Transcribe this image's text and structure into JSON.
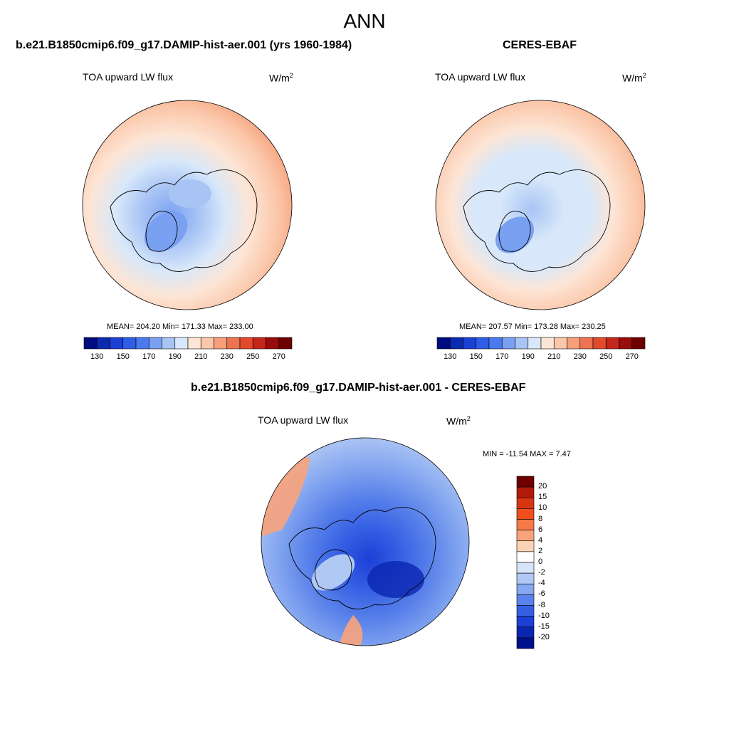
{
  "figure": {
    "title": "ANN",
    "panels": [
      {
        "case": "b.e21.B1850cmip6.f09_g17.DAMIP-hist-aer.001 (yrs 1960-1984)",
        "variable": "TOA upward LW flux",
        "units_base": "W/m",
        "units_exp": "2",
        "stats": "MEAN= 204.20  Min= 171.33  Max= 233.00"
      },
      {
        "case": "CERES-EBAF",
        "variable": "TOA upward LW flux",
        "units_base": "W/m",
        "units_exp": "2",
        "stats": "MEAN= 207.57  Min= 173.28  Max= 230.25"
      },
      {
        "case": "b.e21.B1850cmip6.f09_g17.DAMIP-hist-aer.001 - CERES-EBAF",
        "variable": "TOA upward LW flux",
        "units_base": "W/m",
        "units_exp": "2",
        "stats": "MIN = -11.54 MAX =   7.47"
      }
    ]
  },
  "chart_data": [
    {
      "type": "heatmap",
      "projection": "north-polar-stereographic",
      "title": "b.e21.B1850cmip6.f09_g17.DAMIP-hist-aer.001 (yrs 1960-1984)",
      "variable": "TOA upward LW flux",
      "units": "W/m2",
      "mean": 204.2,
      "min": 171.33,
      "max": 233.0,
      "colorbar_levels": [
        130,
        140,
        150,
        160,
        170,
        180,
        190,
        200,
        210,
        220,
        230,
        240,
        250,
        260,
        270
      ],
      "colorbar_tick_labels": [
        "130",
        "150",
        "170",
        "190",
        "210",
        "230",
        "250",
        "270"
      ],
      "colorbar_colors": [
        "#000b80",
        "#0a2ab0",
        "#1c40d4",
        "#2e5de6",
        "#4a7aee",
        "#7aa0f2",
        "#a8c4f5",
        "#d8e8fa",
        "#fde5d5",
        "#fbc7aa",
        "#f5a07a",
        "#ee7350",
        "#e24a2c",
        "#c4261a",
        "#9a0b0b",
        "#6e0000"
      ]
    },
    {
      "type": "heatmap",
      "projection": "north-polar-stereographic",
      "title": "CERES-EBAF",
      "variable": "TOA upward LW flux",
      "units": "W/m2",
      "mean": 207.57,
      "min": 173.28,
      "max": 230.25,
      "colorbar_levels": [
        130,
        140,
        150,
        160,
        170,
        180,
        190,
        200,
        210,
        220,
        230,
        240,
        250,
        260,
        270
      ],
      "colorbar_tick_labels": [
        "130",
        "150",
        "170",
        "190",
        "210",
        "230",
        "250",
        "270"
      ],
      "colorbar_colors": [
        "#000b80",
        "#0a2ab0",
        "#1c40d4",
        "#2e5de6",
        "#4a7aee",
        "#7aa0f2",
        "#a8c4f5",
        "#d8e8fa",
        "#fde5d5",
        "#fbc7aa",
        "#f5a07a",
        "#ee7350",
        "#e24a2c",
        "#c4261a",
        "#9a0b0b",
        "#6e0000"
      ]
    },
    {
      "type": "heatmap",
      "projection": "north-polar-stereographic",
      "title": "b.e21.B1850cmip6.f09_g17.DAMIP-hist-aer.001 - CERES-EBAF",
      "variable": "TOA upward LW flux",
      "units": "W/m2",
      "min": -11.54,
      "max": 7.47,
      "colorbar_levels": [
        -20,
        -15,
        -10,
        -8,
        -6,
        -4,
        -2,
        0,
        2,
        4,
        6,
        8,
        10,
        15,
        20
      ],
      "colorbar_tick_labels": [
        "20",
        "15",
        "10",
        "8",
        "6",
        "4",
        "2",
        "0",
        "-2",
        "-4",
        "-6",
        "-8",
        "-10",
        "-15",
        "-20"
      ],
      "colorbar_colors": [
        "#6e0000",
        "#b01a0a",
        "#d93512",
        "#f04e1c",
        "#f67a4a",
        "#f9a37c",
        "#fbd4b8",
        "#ffffff",
        "#d6e4fa",
        "#b0c8f4",
        "#86a8f0",
        "#5a82ea",
        "#3560e4",
        "#1c3fd6",
        "#0a25b0",
        "#00108a"
      ]
    }
  ]
}
